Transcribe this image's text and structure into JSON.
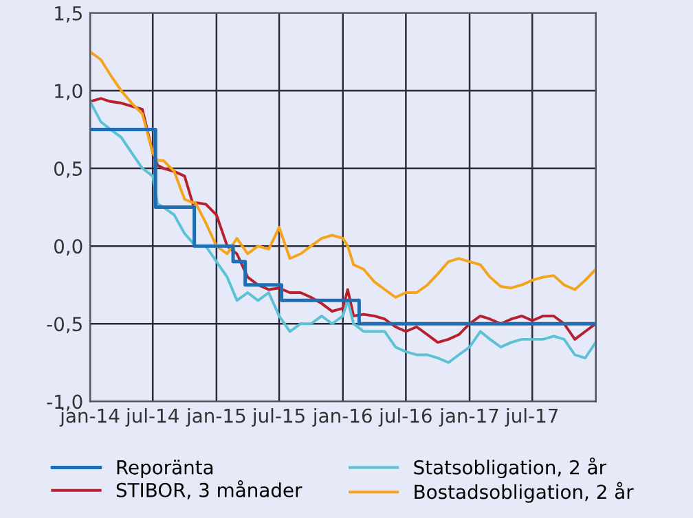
{
  "chart_data": {
    "type": "line",
    "x": [
      "2014-01-01",
      "2014-02-01",
      "2014-03-01",
      "2014-04-01",
      "2014-05-01",
      "2014-06-01",
      "2014-07-01",
      "2014-07-15",
      "2014-08-01",
      "2014-09-01",
      "2014-10-01",
      "2014-10-25",
      "2014-11-01",
      "2014-12-01",
      "2015-01-01",
      "2015-02-01",
      "2015-03-01",
      "2015-04-01",
      "2015-05-01",
      "2015-06-01",
      "2015-07-01",
      "2015-08-01",
      "2015-09-01",
      "2015-10-01",
      "2015-11-01",
      "2015-12-01",
      "2016-01-01",
      "2016-01-15",
      "2016-02-01",
      "2016-03-01",
      "2016-04-01",
      "2016-05-01",
      "2016-06-01",
      "2016-07-01",
      "2016-08-01",
      "2016-09-01",
      "2016-10-01",
      "2016-11-01",
      "2016-12-01",
      "2017-01-01",
      "2017-02-01",
      "2017-03-01",
      "2017-04-01",
      "2017-05-01",
      "2017-06-01",
      "2017-07-01",
      "2017-08-01",
      "2017-09-01",
      "2017-10-01",
      "2017-11-01",
      "2017-12-01",
      "2017-12-31"
    ],
    "series": [
      {
        "name": "Reporänta",
        "color": "#1f6eb4",
        "type": "step",
        "x": [
          "2014-01-01",
          "2014-07-09",
          "2014-10-29",
          "2015-02-18",
          "2015-03-25",
          "2015-07-08",
          "2016-02-17",
          "2017-12-31"
        ],
        "values": [
          0.75,
          0.25,
          0.0,
          -0.1,
          -0.25,
          -0.35,
          -0.5,
          -0.5
        ]
      },
      {
        "name": "STIBOR, 3 månader",
        "color": "#b8202e",
        "values": [
          0.93,
          0.95,
          0.93,
          0.92,
          0.9,
          0.88,
          0.6,
          0.52,
          0.5,
          0.48,
          0.45,
          0.27,
          0.28,
          0.27,
          0.2,
          0.0,
          -0.05,
          -0.2,
          -0.25,
          -0.28,
          -0.27,
          -0.3,
          -0.3,
          -0.33,
          -0.37,
          -0.42,
          -0.4,
          -0.28,
          -0.45,
          -0.44,
          -0.45,
          -0.47,
          -0.52,
          -0.55,
          -0.52,
          -0.57,
          -0.62,
          -0.6,
          -0.57,
          -0.5,
          -0.45,
          -0.47,
          -0.5,
          -0.47,
          -0.45,
          -0.48,
          -0.45,
          -0.45,
          -0.5,
          -0.6,
          -0.55,
          -0.5
        ]
      },
      {
        "name": "Statsobligation, 2 år",
        "color": "#5bc2d6",
        "values": [
          0.93,
          0.8,
          0.75,
          0.7,
          0.6,
          0.5,
          0.45,
          0.27,
          0.25,
          0.2,
          0.08,
          0.02,
          0.0,
          -0.0,
          -0.1,
          -0.2,
          -0.35,
          -0.3,
          -0.35,
          -0.3,
          -0.45,
          -0.55,
          -0.5,
          -0.5,
          -0.45,
          -0.5,
          -0.45,
          -0.35,
          -0.5,
          -0.55,
          -0.55,
          -0.55,
          -0.65,
          -0.68,
          -0.7,
          -0.7,
          -0.72,
          -0.75,
          -0.7,
          -0.65,
          -0.55,
          -0.6,
          -0.65,
          -0.62,
          -0.6,
          -0.6,
          -0.6,
          -0.58,
          -0.6,
          -0.7,
          -0.72,
          -0.62
        ]
      },
      {
        "name": "Bostadsobligation, 2 år",
        "color": "#f5a31a",
        "values": [
          1.25,
          1.2,
          1.1,
          1.0,
          0.92,
          0.85,
          0.6,
          0.55,
          0.55,
          0.48,
          0.3,
          0.28,
          0.28,
          0.15,
          0.0,
          -0.05,
          0.05,
          -0.05,
          0.0,
          -0.02,
          0.12,
          -0.08,
          -0.05,
          0.0,
          0.05,
          0.07,
          0.05,
          0.0,
          -0.12,
          -0.15,
          -0.23,
          -0.28,
          -0.33,
          -0.3,
          -0.3,
          -0.25,
          -0.18,
          -0.1,
          -0.08,
          -0.1,
          -0.12,
          -0.2,
          -0.26,
          -0.27,
          -0.25,
          -0.22,
          -0.2,
          -0.19,
          -0.25,
          -0.28,
          -0.22,
          -0.15
        ]
      }
    ],
    "xlim": [
      "2014-01-01",
      "2018-01-01"
    ],
    "xticks": [
      {
        "value": "2014-01-01",
        "label": "jan-14"
      },
      {
        "value": "2014-07-01",
        "label": "jul-14"
      },
      {
        "value": "2015-01-01",
        "label": "jan-15"
      },
      {
        "value": "2015-07-01",
        "label": "jul-15"
      },
      {
        "value": "2016-01-01",
        "label": "jan-16"
      },
      {
        "value": "2016-07-01",
        "label": "jul-16"
      },
      {
        "value": "2017-01-01",
        "label": "jan-17"
      },
      {
        "value": "2017-07-01",
        "label": "jul-17"
      },
      {
        "value": "2018-01-01",
        "label": null
      }
    ],
    "ylim": [
      -1.0,
      1.5
    ],
    "yticks": [
      {
        "value": -1.0,
        "label": "-1,0"
      },
      {
        "value": -0.5,
        "label": "-0,5"
      },
      {
        "value": 0.0,
        "label": "0,0"
      },
      {
        "value": 0.5,
        "label": "0,5"
      },
      {
        "value": 1.0,
        "label": "1,0"
      },
      {
        "value": 1.5,
        "label": "1,5"
      }
    ],
    "grid": true,
    "legend": "bottom",
    "line_style": "solid",
    "marker": "none"
  }
}
